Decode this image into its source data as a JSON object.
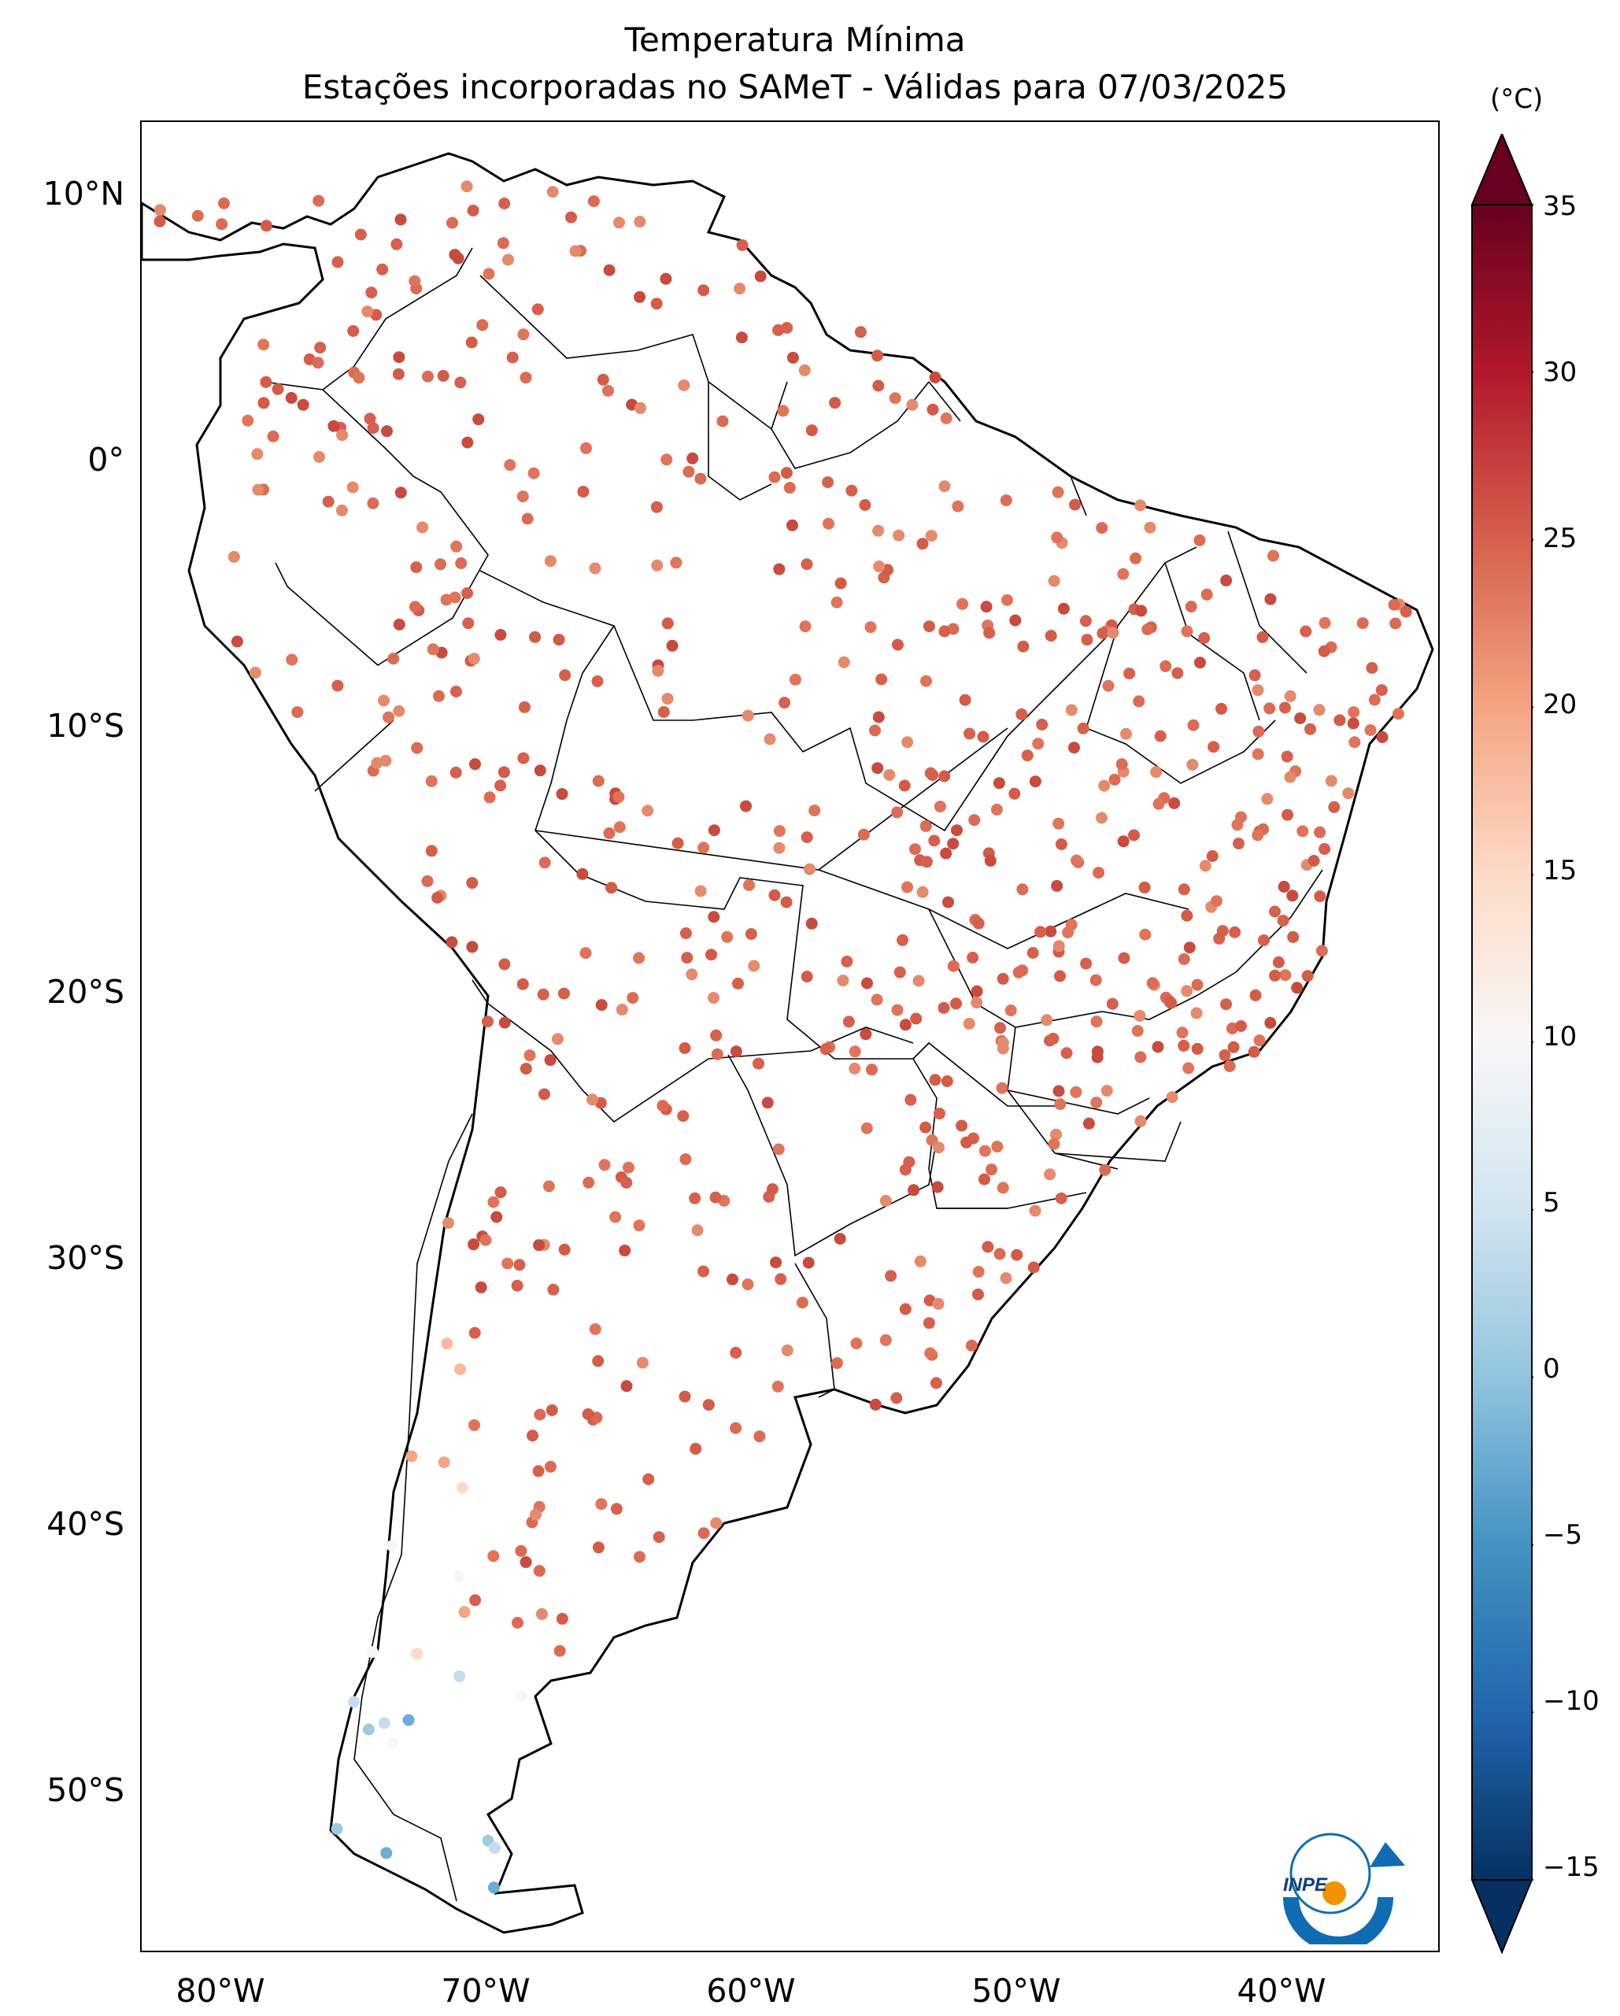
{
  "title": {
    "line1": "Temperatura Mínima",
    "line2": "Estações incorporadas no SAMeT - Válidas para 07/03/2025"
  },
  "axes": {
    "lat_labels": [
      "10°N",
      "0°",
      "10°S",
      "20°S",
      "30°S",
      "40°S",
      "50°S"
    ],
    "lat_values": [
      10,
      0,
      -10,
      -20,
      -30,
      -40,
      -50
    ],
    "lon_labels": [
      "80°W",
      "70°W",
      "60°W",
      "50°W",
      "40°W"
    ],
    "lon_values": [
      -80,
      -70,
      -60,
      -50,
      -40
    ],
    "lon_range": [
      -83,
      -34
    ],
    "lat_range": [
      13,
      -56
    ]
  },
  "colorbar": {
    "unit": "(°C)",
    "tick_labels": [
      "35",
      "30",
      "25",
      "20",
      "15",
      "10",
      "5",
      "0",
      "−5",
      "−10",
      "−15"
    ],
    "tick_values": [
      35,
      30,
      25,
      20,
      15,
      10,
      5,
      0,
      -5,
      -10,
      -15
    ],
    "range": [
      -15,
      35
    ],
    "colormap": "RdBu_r",
    "extend": "both"
  },
  "logo": {
    "text": "INPE",
    "colors": [
      "#0f6cb3",
      "#f39200"
    ]
  },
  "colors": {
    "land_border": "#000000",
    "background": "#ffffff"
  }
}
